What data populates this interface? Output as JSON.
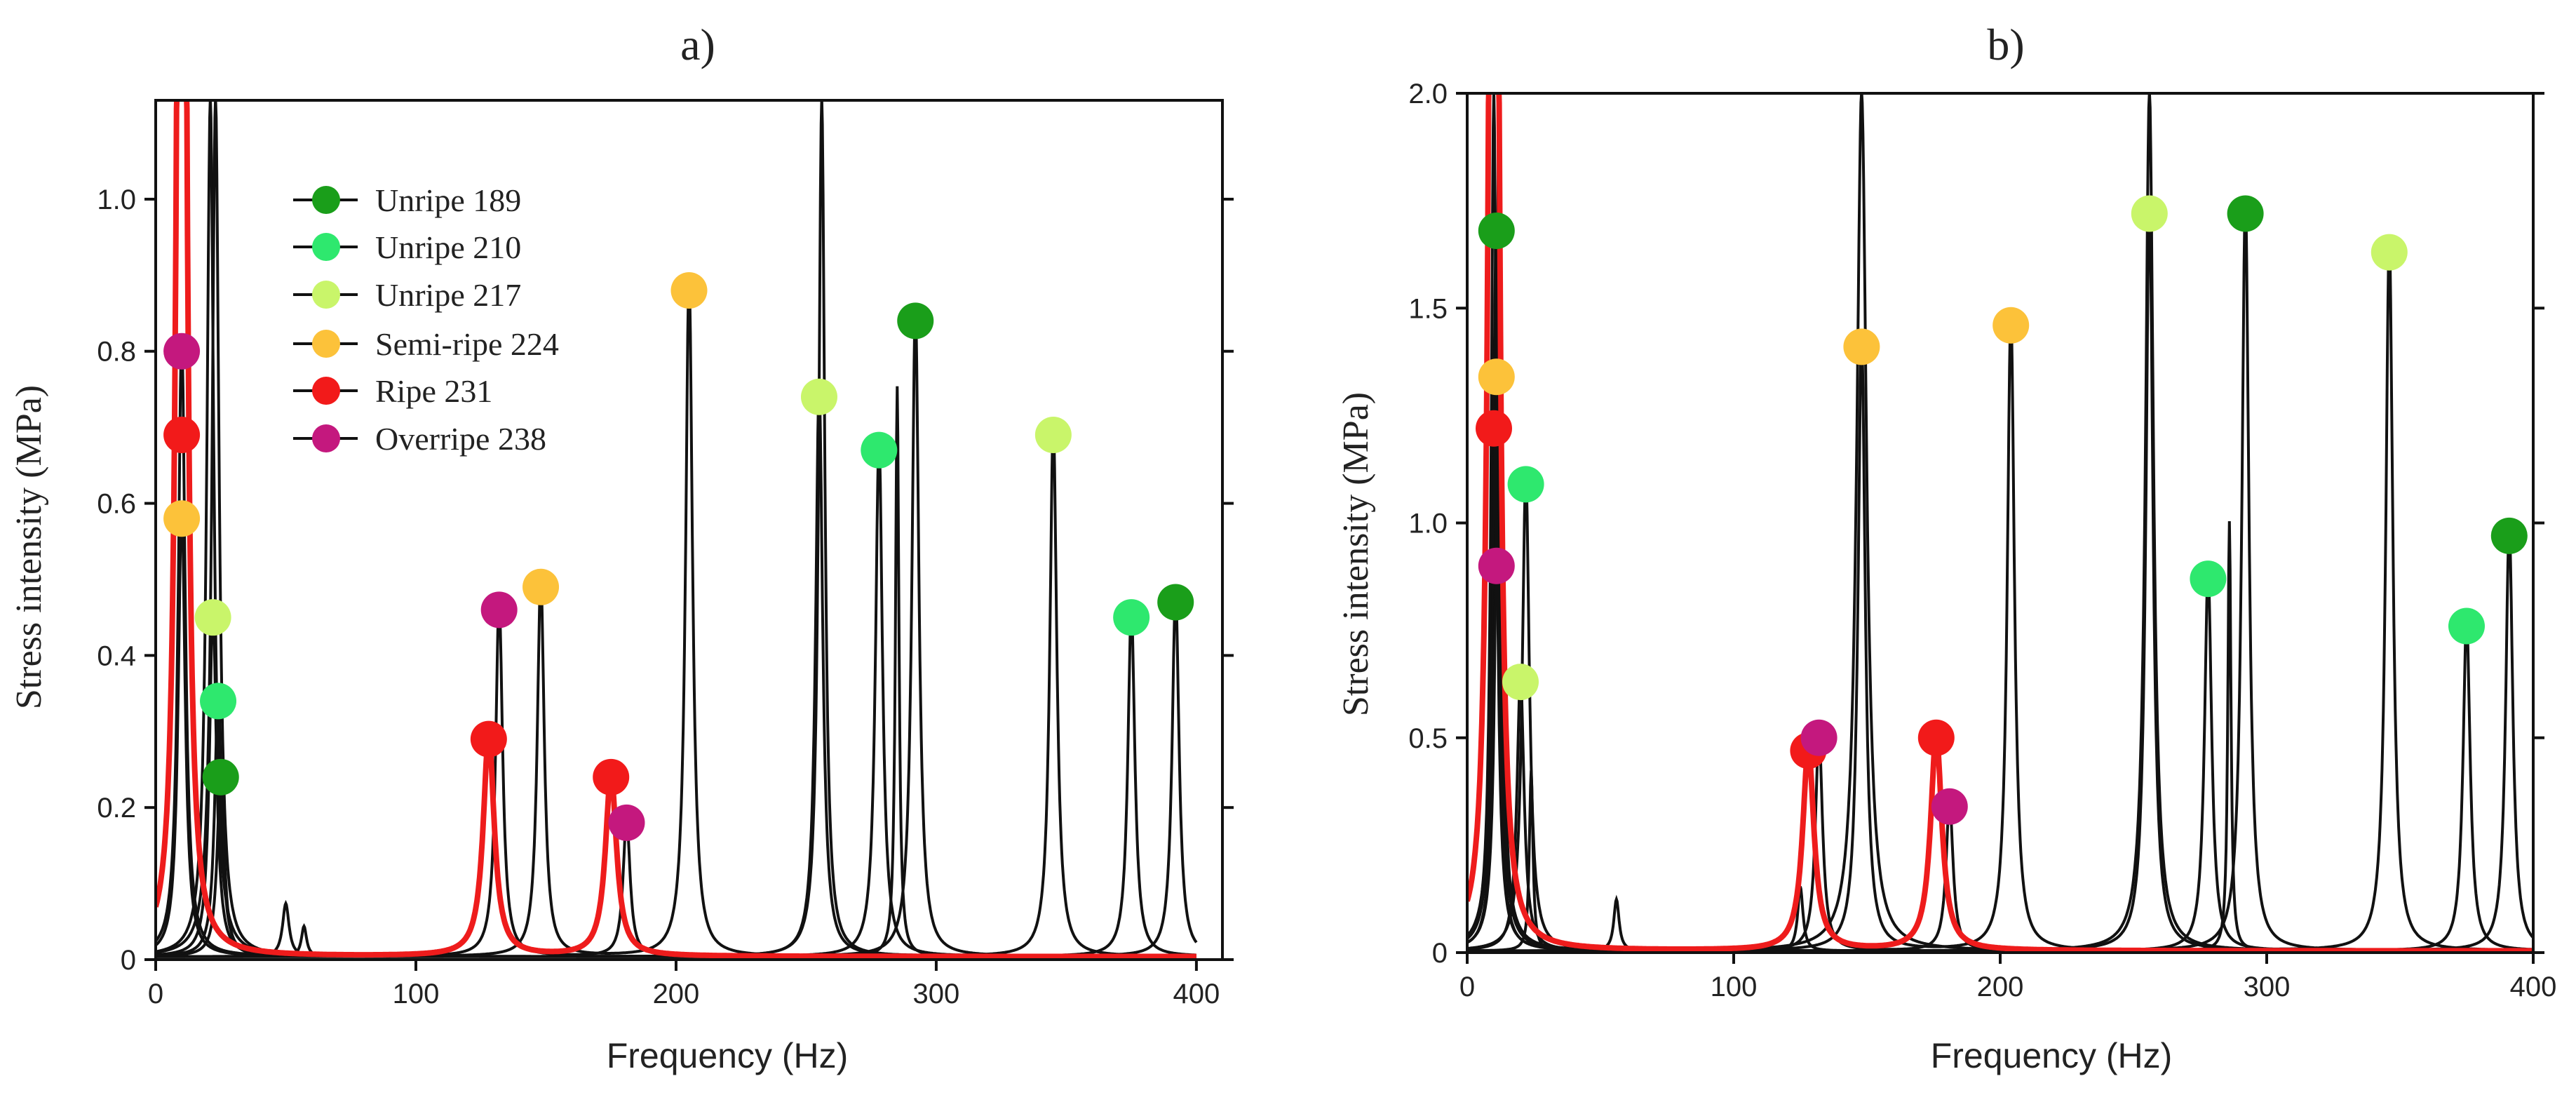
{
  "colors": {
    "unripe189": "#1a9e1a",
    "unripe210": "#2ee86e",
    "unripe217": "#c9f56a",
    "semiripe224": "#fcc23a",
    "ripe231": "#f21a1a",
    "overripe238": "#c4187e",
    "ripe_curve": "#ee1c1c",
    "black": "#111111"
  },
  "legend": [
    {
      "label": "Unripe 189",
      "color_key": "unripe189"
    },
    {
      "label": "Unripe 210",
      "color_key": "unripe210"
    },
    {
      "label": "Unripe 217",
      "color_key": "unripe217"
    },
    {
      "label": "Semi-ripe 224",
      "color_key": "semiripe224"
    },
    {
      "label": "Ripe 231",
      "color_key": "ripe231"
    },
    {
      "label": "Overripe 238",
      "color_key": "overripe238"
    }
  ],
  "chart_data": [
    {
      "type": "line",
      "panel": "a",
      "title": "a)",
      "xlabel": "Frequency (Hz)",
      "ylabel": "Stress intensity  (MPa)",
      "xlim": [
        0,
        410
      ],
      "ylim": [
        0,
        1.13
      ],
      "xticks": [
        0,
        100,
        200,
        300,
        400
      ],
      "xtick_labels": [
        "0",
        "100",
        "200",
        "300",
        "400"
      ],
      "yticks": [
        0,
        0.2,
        0.4,
        0.6,
        0.8,
        1.0
      ],
      "ytick_labels": [
        "0",
        "0.2",
        "0.4",
        "0.6",
        "0.8",
        "1.0"
      ],
      "legend_position": "upper-left",
      "resonance_series": [
        {
          "name": "Unripe 189",
          "color_key": "unripe189",
          "curve": "black",
          "peaks": [
            {
              "f": 25,
              "a": 0.24
            },
            {
              "f": 292,
              "a": 0.84
            },
            {
              "f": 392,
              "a": 0.47
            }
          ]
        },
        {
          "name": "Unripe 210",
          "color_key": "unripe210",
          "curve": "black",
          "peaks": [
            {
              "f": 24,
              "a": 0.34
            },
            {
              "f": 278,
              "a": 0.67
            },
            {
              "f": 375,
              "a": 0.45
            }
          ]
        },
        {
          "name": "Unripe 217",
          "color_key": "unripe217",
          "curve": "black",
          "peaks": [
            {
              "f": 22,
              "a": 0.45
            },
            {
              "f": 255,
              "a": 0.74
            },
            {
              "f": 345,
              "a": 0.69
            }
          ]
        },
        {
          "name": "Semi-ripe 224",
          "color_key": "semiripe224",
          "curve": "black",
          "peaks": [
            {
              "f": 10,
              "a": 0.58
            },
            {
              "f": 148,
              "a": 0.49
            },
            {
              "f": 205,
              "a": 0.88
            }
          ]
        },
        {
          "name": "Ripe 231",
          "color_key": "ripe231",
          "curve": "red",
          "peaks": [
            {
              "f": 10,
              "a": 0.69
            },
            {
              "f": 128,
              "a": 0.29
            },
            {
              "f": 175,
              "a": 0.24
            }
          ]
        },
        {
          "name": "Overripe 238",
          "color_key": "overripe238",
          "curve": "black",
          "peaks": [
            {
              "f": 10,
              "a": 0.8
            },
            {
              "f": 132,
              "a": 0.46
            },
            {
              "f": 181,
              "a": 0.18
            }
          ]
        }
      ],
      "extra_black_peaks": [
        {
          "f": 21,
          "a": 1.13,
          "w": 1.6
        },
        {
          "f": 23,
          "a": 1.13,
          "w": 1.6
        },
        {
          "f": 256,
          "a": 1.13,
          "w": 1.4
        },
        {
          "f": 285,
          "a": 0.75,
          "w": 0.8
        },
        {
          "f": 50,
          "a": 0.07,
          "w": 1.5
        },
        {
          "f": 57,
          "a": 0.04,
          "w": 1.2
        }
      ]
    },
    {
      "type": "line",
      "panel": "b",
      "title": "b)",
      "xlabel": "Frequency (Hz)",
      "ylabel": "Stress intensity (MPa)",
      "xlim": [
        0,
        400
      ],
      "ylim": [
        0,
        2.0
      ],
      "xticks": [
        0,
        100,
        200,
        300,
        400
      ],
      "xtick_labels": [
        "0",
        "100",
        "200",
        "300",
        "400"
      ],
      "yticks": [
        0,
        0.5,
        1.0,
        1.5,
        2.0
      ],
      "ytick_labels": [
        "0",
        "0.5",
        "1.0",
        "1.5",
        "2.0"
      ],
      "resonance_series": [
        {
          "name": "Unripe 189",
          "color_key": "unripe189",
          "curve": "black",
          "peaks": [
            {
              "f": 11,
              "a": 1.68
            },
            {
              "f": 292,
              "a": 1.72
            },
            {
              "f": 391,
              "a": 0.97
            }
          ]
        },
        {
          "name": "Unripe 210",
          "color_key": "unripe210",
          "curve": "black",
          "peaks": [
            {
              "f": 22,
              "a": 1.09
            },
            {
              "f": 278,
              "a": 0.87
            },
            {
              "f": 375,
              "a": 0.76
            }
          ]
        },
        {
          "name": "Unripe 217",
          "color_key": "unripe217",
          "curve": "black",
          "peaks": [
            {
              "f": 20,
              "a": 0.63
            },
            {
              "f": 256,
              "a": 1.72
            },
            {
              "f": 346,
              "a": 1.63
            }
          ]
        },
        {
          "name": "Semi-ripe 224",
          "color_key": "semiripe224",
          "curve": "black",
          "peaks": [
            {
              "f": 11,
              "a": 1.34
            },
            {
              "f": 148,
              "a": 1.41
            },
            {
              "f": 204,
              "a": 1.46
            }
          ]
        },
        {
          "name": "Ripe 231",
          "color_key": "ripe231",
          "curve": "red",
          "peaks": [
            {
              "f": 10,
              "a": 1.22
            },
            {
              "f": 128,
              "a": 0.47
            },
            {
              "f": 176,
              "a": 0.5
            }
          ]
        },
        {
          "name": "Overripe 238",
          "color_key": "overripe238",
          "curve": "black",
          "peaks": [
            {
              "f": 11,
              "a": 0.9
            },
            {
              "f": 132,
              "a": 0.5
            },
            {
              "f": 181,
              "a": 0.34
            }
          ]
        }
      ],
      "extra_black_peaks": [
        {
          "f": 10,
          "a": 2.0,
          "w": 1.2
        },
        {
          "f": 12,
          "a": 2.0,
          "w": 1.2
        },
        {
          "f": 148,
          "a": 2.0,
          "w": 2.2
        },
        {
          "f": 256,
          "a": 2.0,
          "w": 1.8
        },
        {
          "f": 286,
          "a": 1.0,
          "w": 0.7
        },
        {
          "f": 24,
          "a": 0.42,
          "w": 0.8
        },
        {
          "f": 56,
          "a": 0.12,
          "w": 1.2
        },
        {
          "f": 125,
          "a": 0.15,
          "w": 1.2
        }
      ]
    }
  ]
}
